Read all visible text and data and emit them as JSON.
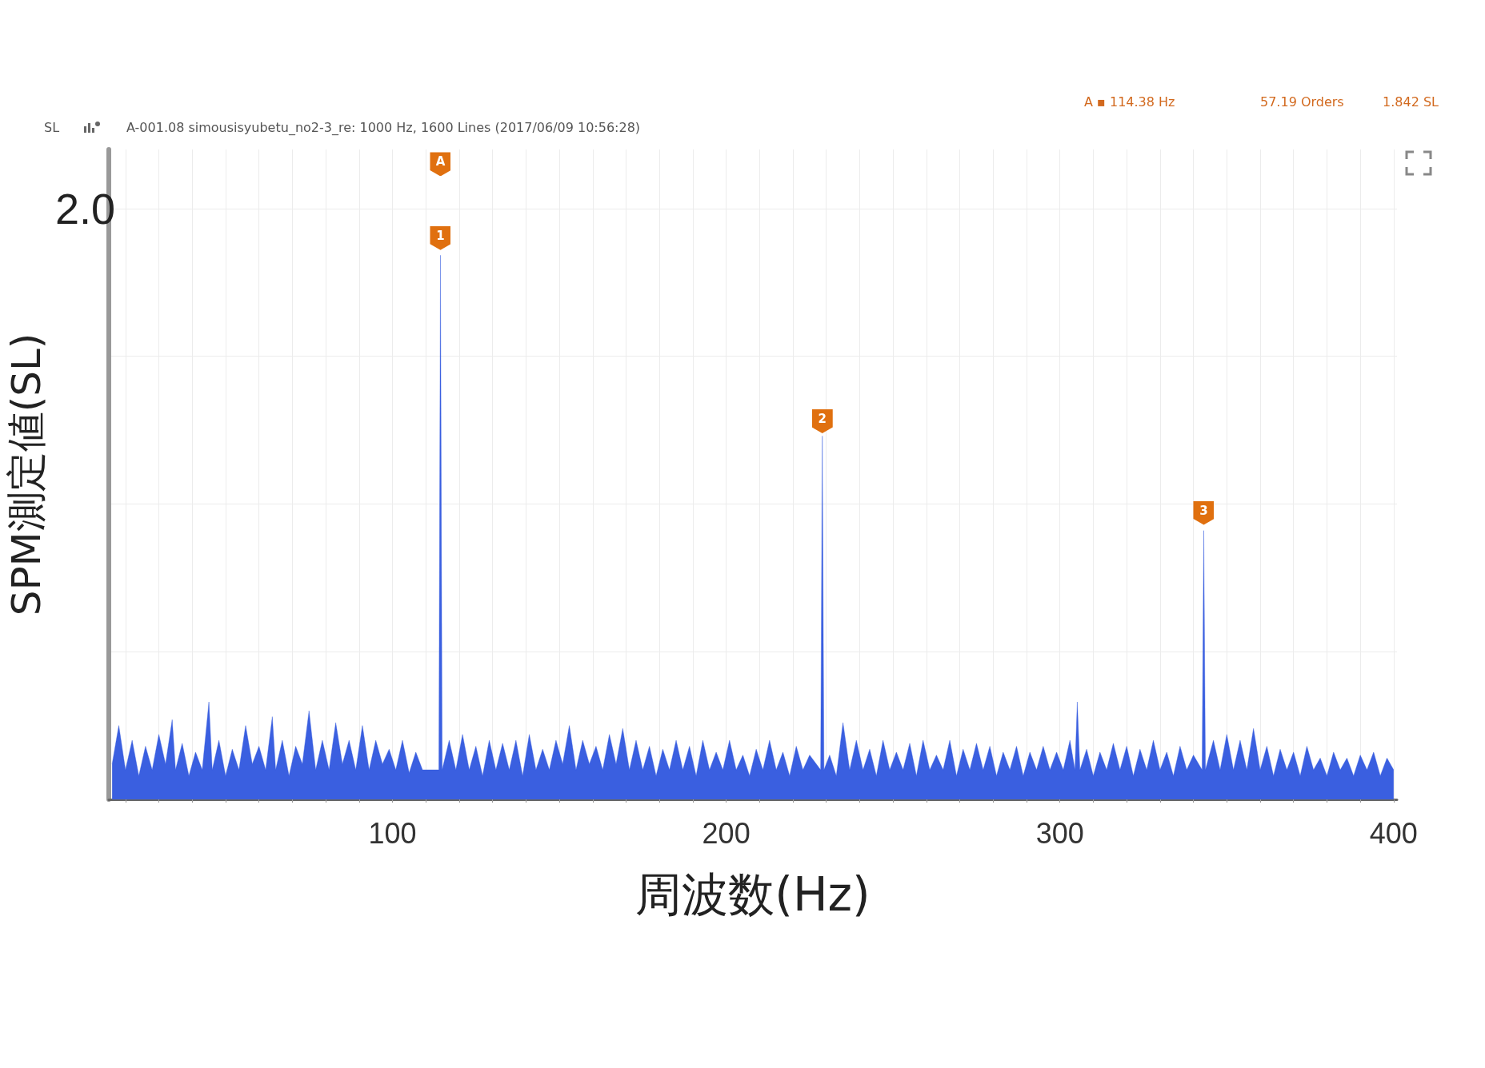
{
  "chart_data": {
    "type": "area",
    "xlabel": "周波数(Hz)",
    "ylabel": "SPM測定値(SL)",
    "annotations": [
      "SL",
      "A-001.08 simousisyubetu_no2-3_re: 1000 Hz, 1600 Lines (2017/06/09 10:56:28)",
      "A ▪ 114.38 Hz",
      "57.19 Orders",
      "1.842 SL",
      {
        "text": "A",
        "x": 114.38,
        "y": 2.15
      },
      {
        "text": "1",
        "x": 114.38,
        "y": 1.9
      },
      {
        "text": "2",
        "x": 228.8,
        "y": 1.28
      },
      {
        "text": "3",
        "x": 343.1,
        "y": 0.97
      }
    ],
    "series": [
      {
        "color": "#3a5fe0",
        "x": [
          16,
          18,
          20,
          22,
          24,
          26,
          28,
          30,
          32,
          34,
          35,
          37,
          39,
          41,
          43,
          45,
          46,
          48,
          50,
          52,
          54,
          56,
          58,
          60,
          62,
          64,
          65,
          67,
          69,
          71,
          73,
          75,
          77,
          79,
          81,
          83,
          85,
          87,
          89,
          91,
          93,
          95,
          97,
          99,
          101,
          103,
          105,
          107,
          109,
          113.9,
          114.38,
          114.9,
          117,
          119,
          121,
          123,
          125,
          127,
          129,
          131,
          133,
          135,
          137,
          139,
          141,
          143,
          145,
          147,
          149,
          151,
          153,
          155,
          157,
          159,
          161,
          163,
          165,
          167,
          169,
          171,
          173,
          175,
          177,
          179,
          181,
          183,
          185,
          187,
          189,
          191,
          193,
          195,
          197,
          199,
          201,
          203,
          205,
          207,
          209,
          211,
          213,
          215,
          217,
          219,
          221,
          223,
          225,
          228.3,
          228.8,
          229.3,
          231,
          233,
          235,
          237,
          239,
          241,
          243,
          245,
          247,
          249,
          251,
          253,
          255,
          257,
          259,
          261,
          263,
          265,
          267,
          269,
          271,
          273,
          275,
          277,
          279,
          281,
          283,
          285,
          287,
          289,
          291,
          293,
          295,
          297,
          299,
          301,
          303,
          304.5,
          305.2,
          306,
          308,
          310,
          312,
          314,
          316,
          318,
          320,
          322,
          324,
          326,
          328,
          330,
          332,
          334,
          336,
          338,
          340,
          342.6,
          343.1,
          343.6,
          346,
          348,
          350,
          352,
          354,
          356,
          358,
          360,
          362,
          364,
          366,
          368,
          370,
          372,
          374,
          376,
          378,
          380,
          382,
          384,
          386,
          388,
          390,
          392,
          394,
          396,
          398,
          400
        ],
        "values": [
          0.12,
          0.25,
          0.1,
          0.2,
          0.08,
          0.18,
          0.1,
          0.22,
          0.12,
          0.27,
          0.1,
          0.19,
          0.08,
          0.16,
          0.1,
          0.33,
          0.1,
          0.2,
          0.08,
          0.17,
          0.1,
          0.25,
          0.12,
          0.18,
          0.1,
          0.28,
          0.1,
          0.2,
          0.08,
          0.18,
          0.12,
          0.3,
          0.1,
          0.2,
          0.1,
          0.26,
          0.12,
          0.2,
          0.1,
          0.25,
          0.1,
          0.2,
          0.12,
          0.17,
          0.1,
          0.2,
          0.09,
          0.16,
          0.1,
          0.1,
          1.842,
          0.1,
          0.2,
          0.1,
          0.22,
          0.1,
          0.18,
          0.08,
          0.2,
          0.1,
          0.19,
          0.1,
          0.2,
          0.08,
          0.22,
          0.1,
          0.17,
          0.1,
          0.2,
          0.12,
          0.25,
          0.1,
          0.2,
          0.12,
          0.18,
          0.1,
          0.22,
          0.12,
          0.24,
          0.1,
          0.2,
          0.1,
          0.18,
          0.08,
          0.17,
          0.1,
          0.2,
          0.1,
          0.18,
          0.08,
          0.2,
          0.1,
          0.16,
          0.1,
          0.2,
          0.1,
          0.15,
          0.08,
          0.17,
          0.1,
          0.2,
          0.1,
          0.16,
          0.08,
          0.18,
          0.1,
          0.15,
          0.1,
          1.23,
          0.1,
          0.15,
          0.08,
          0.26,
          0.1,
          0.2,
          0.1,
          0.17,
          0.08,
          0.2,
          0.1,
          0.16,
          0.1,
          0.19,
          0.08,
          0.2,
          0.1,
          0.15,
          0.1,
          0.2,
          0.08,
          0.17,
          0.1,
          0.19,
          0.1,
          0.18,
          0.08,
          0.16,
          0.1,
          0.18,
          0.08,
          0.16,
          0.1,
          0.18,
          0.1,
          0.16,
          0.1,
          0.2,
          0.1,
          0.33,
          0.1,
          0.17,
          0.08,
          0.16,
          0.1,
          0.19,
          0.1,
          0.18,
          0.08,
          0.17,
          0.1,
          0.2,
          0.1,
          0.16,
          0.08,
          0.18,
          0.1,
          0.15,
          0.1,
          0.91,
          0.1,
          0.2,
          0.1,
          0.22,
          0.1,
          0.2,
          0.1,
          0.24,
          0.1,
          0.18,
          0.08,
          0.17,
          0.1,
          0.16,
          0.08,
          0.18,
          0.1,
          0.14,
          0.08,
          0.16,
          0.1,
          0.14,
          0.08,
          0.15,
          0.1,
          0.16,
          0.08,
          0.14,
          0.1
        ]
      }
    ],
    "xlim": [
      15,
      401
    ],
    "xticks": [
      {
        "value": 20,
        "label": null
      },
      {
        "value": 30,
        "label": null
      },
      {
        "value": 40,
        "label": null
      },
      {
        "value": 50,
        "label": null
      },
      {
        "value": 60,
        "label": null
      },
      {
        "value": 70,
        "label": null
      },
      {
        "value": 80,
        "label": null
      },
      {
        "value": 90,
        "label": null
      },
      100,
      {
        "value": 110,
        "label": null
      },
      {
        "value": 120,
        "label": null
      },
      {
        "value": 130,
        "label": null
      },
      {
        "value": 140,
        "label": null
      },
      {
        "value": 150,
        "label": null
      },
      {
        "value": 160,
        "label": null
      },
      {
        "value": 170,
        "label": null
      },
      {
        "value": 180,
        "label": null
      },
      {
        "value": 190,
        "label": null
      },
      200,
      {
        "value": 210,
        "label": null
      },
      {
        "value": 220,
        "label": null
      },
      {
        "value": 230,
        "label": null
      },
      {
        "value": 240,
        "label": null
      },
      {
        "value": 250,
        "label": null
      },
      {
        "value": 260,
        "label": null
      },
      {
        "value": 270,
        "label": null
      },
      {
        "value": 280,
        "label": null
      },
      {
        "value": 290,
        "label": null
      },
      300,
      {
        "value": 310,
        "label": null
      },
      {
        "value": 320,
        "label": null
      },
      {
        "value": 330,
        "label": null
      },
      {
        "value": 340,
        "label": null
      },
      {
        "value": 350,
        "label": null
      },
      {
        "value": 360,
        "label": null
      },
      {
        "value": 370,
        "label": null
      },
      {
        "value": 380,
        "label": null
      },
      {
        "value": 390,
        "label": null
      },
      400
    ],
    "ylim": [
      0,
      2.2
    ],
    "yticks": [
      {
        "value": 0.5,
        "label": null
      },
      {
        "value": 1,
        "label": null
      },
      {
        "value": 1.5,
        "label": null
      },
      {
        "value": 2,
        "label": "2.0"
      }
    ],
    "grid": true
  }
}
